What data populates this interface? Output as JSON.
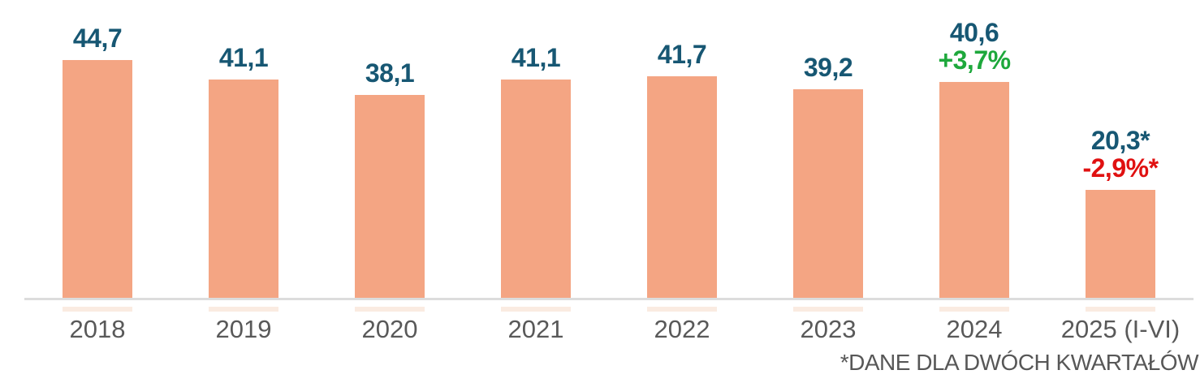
{
  "chart": {
    "colors": {
      "bar": "#F4A583",
      "bar_reflection": "#FAEBE1",
      "value_label": "#175773",
      "positive": "#1EA83C",
      "negative": "#E01111",
      "axis_label": "#595959",
      "footnote": "#575757",
      "axis_line": "#DCDCDC"
    }
  },
  "chart_data": {
    "type": "bar",
    "title": "",
    "xlabel": "",
    "ylabel": "",
    "grid": "off",
    "legend": "none",
    "ylim": [
      0,
      44.7
    ],
    "categories": [
      "2018",
      "2019",
      "2020",
      "2021",
      "2022",
      "2023",
      "2024",
      "2025 (I-VI)"
    ],
    "values": [
      44.7,
      41.1,
      38.1,
      41.1,
      41.7,
      39.2,
      40.6,
      20.3
    ],
    "value_labels": [
      "44,7",
      "41,1",
      "38,1",
      "41,1",
      "41,7",
      "39,2",
      "40,6",
      "20,3*"
    ],
    "deltas": [
      "",
      "",
      "",
      "",
      "",
      "",
      "+3,7%",
      "-2,9%*"
    ],
    "delta_types": [
      "",
      "",
      "",
      "",
      "",
      "",
      "positive",
      "negative"
    ],
    "footnote": "*DANE DLA DWÓCH KWARTAŁÓW"
  }
}
